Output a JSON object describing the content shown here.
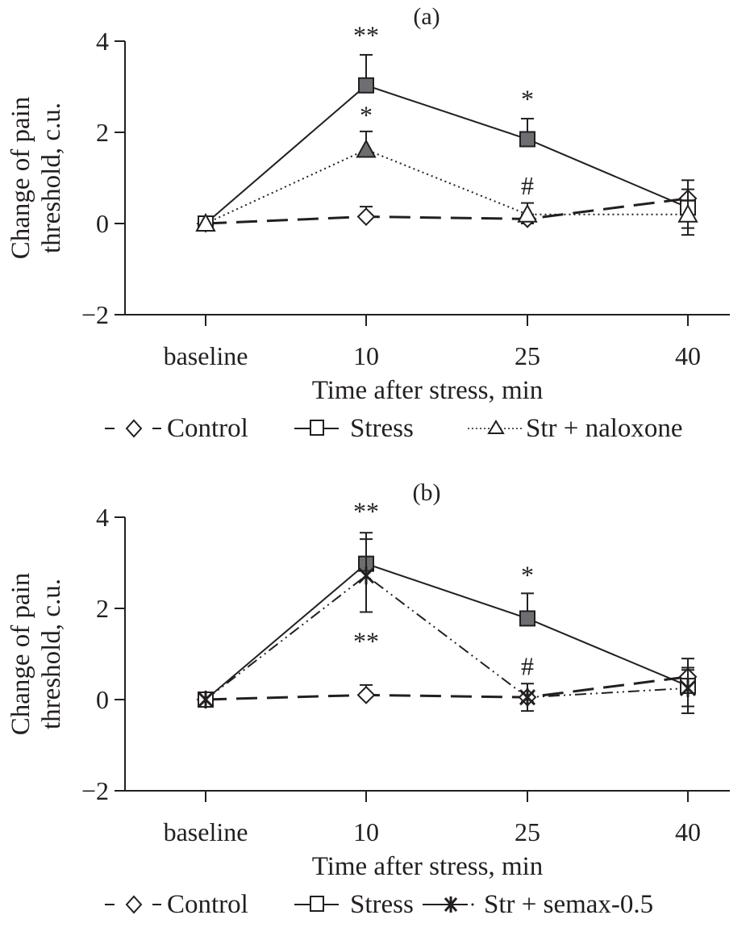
{
  "chart_data": [
    {
      "type": "line",
      "title": "(a)",
      "xlabel": "Time after stress, min",
      "ylabel": [
        "Change of pain",
        "threshold, c.u."
      ],
      "categories": [
        "baseline",
        "10",
        "25",
        "40"
      ],
      "ylim": [
        -2,
        4
      ],
      "yticks": [
        4,
        2,
        0,
        -2
      ],
      "ytick_labels": [
        "4",
        "2",
        "0",
        "−2"
      ],
      "grid": false,
      "legend": "bottom",
      "series": [
        {
          "name": "Control",
          "style": "dashed",
          "marker": "diamond",
          "filled": [
            false,
            false,
            false,
            false
          ],
          "values": [
            0,
            0.15,
            0.1,
            0.55
          ],
          "err": [
            0,
            0.22,
            0.1,
            0.2
          ]
        },
        {
          "name": "Stress",
          "style": "solid",
          "marker": "square",
          "filled": [
            false,
            true,
            true,
            false
          ],
          "values": [
            0,
            3.03,
            1.85,
            0.35
          ],
          "err": [
            0,
            0.67,
            0.45,
            0.6
          ]
        },
        {
          "name": "Str + naloxone",
          "style": "dotted",
          "marker": "triangle",
          "filled": [
            false,
            true,
            false,
            false
          ],
          "values": [
            0,
            1.62,
            0.2,
            0.2
          ],
          "err": [
            0,
            0.4,
            0.25,
            0.3
          ]
        }
      ],
      "annotations": [
        {
          "category": "10",
          "y": 4.15,
          "text": "**"
        },
        {
          "category": "10",
          "y": 2.4,
          "text": "*"
        },
        {
          "category": "25",
          "y": 2.75,
          "text": "*"
        },
        {
          "category": "25",
          "y": 0.85,
          "text": "#"
        }
      ],
      "legend_labels": [
        "Control",
        "Stress",
        "Str + naloxone"
      ]
    },
    {
      "type": "line",
      "title": "(b)",
      "xlabel": "Time after stress, min",
      "ylabel": [
        "Change of pain",
        "threshold, c.u."
      ],
      "categories": [
        "baseline",
        "10",
        "25",
        "40"
      ],
      "ylim": [
        -2,
        4
      ],
      "yticks": [
        4,
        2,
        0,
        -2
      ],
      "ytick_labels": [
        "4",
        "2",
        "0",
        "−2"
      ],
      "grid": false,
      "legend": "bottom",
      "series": [
        {
          "name": "Control",
          "style": "dashed",
          "marker": "diamond",
          "filled": [
            false,
            false,
            false,
            false
          ],
          "values": [
            0,
            0.1,
            0.05,
            0.5
          ],
          "err": [
            0,
            0.22,
            0.1,
            0.2
          ]
        },
        {
          "name": "Stress",
          "style": "solid",
          "marker": "square",
          "filled": [
            false,
            true,
            true,
            false
          ],
          "values": [
            0,
            2.98,
            1.78,
            0.3
          ],
          "err": [
            0,
            0.68,
            0.55,
            0.6
          ]
        },
        {
          "name": "Str + semax-0.5",
          "style": "dashdotdot",
          "marker": "asterisk",
          "filled": [
            false,
            false,
            false,
            false
          ],
          "values": [
            0,
            2.72,
            0.05,
            0.25
          ],
          "err": [
            0,
            0.8,
            0.3,
            0.4
          ]
        }
      ],
      "annotations": [
        {
          "category": "10",
          "y": 4.15,
          "text": "**"
        },
        {
          "category": "10",
          "y": 1.3,
          "text": "**"
        },
        {
          "category": "25",
          "y": 2.75,
          "text": "*"
        },
        {
          "category": "25",
          "y": 0.75,
          "text": "#"
        }
      ],
      "legend_labels": [
        "Control",
        "Stress",
        "Str + semax-0.5"
      ]
    }
  ]
}
